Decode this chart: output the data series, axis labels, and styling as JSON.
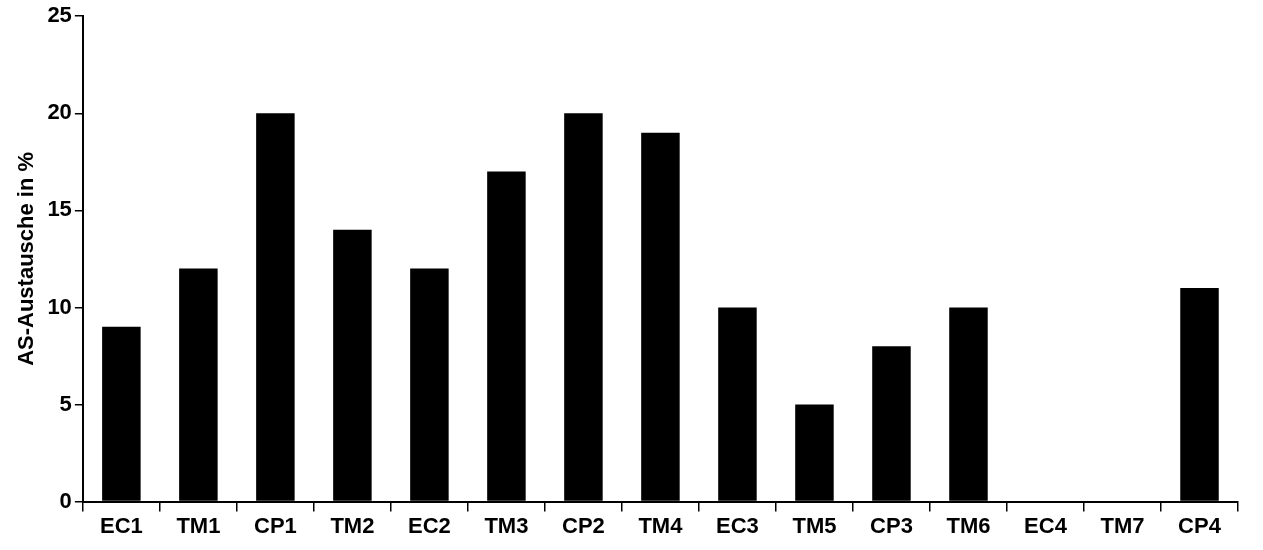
{
  "chart_data": {
    "type": "bar",
    "ylabel": "AS-Austausche in %",
    "categories": [
      "EC1",
      "TM1",
      "CP1",
      "TM2",
      "EC2",
      "TM3",
      "CP2",
      "TM4",
      "EC3",
      "TM5",
      "CP3",
      "TM6",
      "EC4",
      "TM7",
      "CP4"
    ],
    "values": [
      9,
      12,
      20,
      14,
      12,
      17,
      20,
      19,
      10,
      5,
      8,
      10,
      0,
      0,
      11
    ],
    "color": "#000000",
    "ylim": [
      0,
      25
    ],
    "yticks": [
      0,
      5,
      10,
      15,
      20,
      25
    ],
    "grid": false,
    "legend": false
  }
}
